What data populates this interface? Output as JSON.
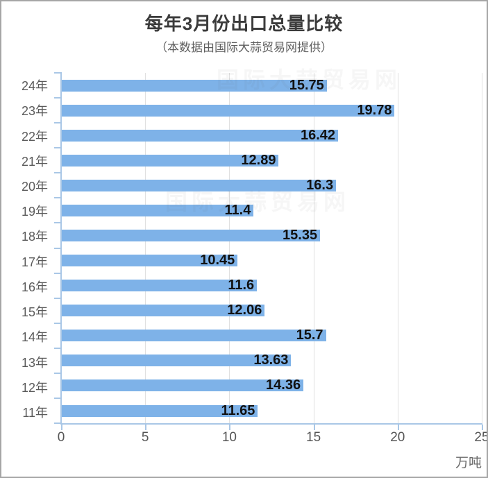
{
  "header": {
    "title": "每年3月份出口总量比较",
    "subtitle": "（本数据由国际大蒜贸易网提供）"
  },
  "watermark": {
    "text": "国际大蒜贸易网"
  },
  "chart_data": {
    "type": "bar",
    "orientation": "horizontal",
    "title": "每年3月份出口总量比较",
    "subtitle": "（本数据由国际大蒜贸易网提供）",
    "categories": [
      "24年",
      "23年",
      "22年",
      "21年",
      "20年",
      "19年",
      "18年",
      "17年",
      "16年",
      "15年",
      "14年",
      "13年",
      "12年",
      "11年"
    ],
    "values": [
      15.75,
      19.78,
      16.42,
      12.89,
      16.3,
      11.4,
      15.35,
      10.45,
      11.6,
      12.06,
      15.7,
      13.63,
      14.36,
      11.65
    ],
    "x_ticks": [
      0,
      5,
      10,
      15,
      20,
      25
    ],
    "xlim": [
      0,
      25
    ],
    "xlabel_unit": "万吨",
    "ylabel": "",
    "grid": true,
    "value_labels": "inside-right",
    "legend": "none"
  },
  "colors": {
    "bar": "#7EB2E8",
    "axis_line": "#A9C7E6",
    "gridline": "#E0E0E0",
    "value_label": "#111111",
    "frame_border": "#A6A6A6"
  }
}
